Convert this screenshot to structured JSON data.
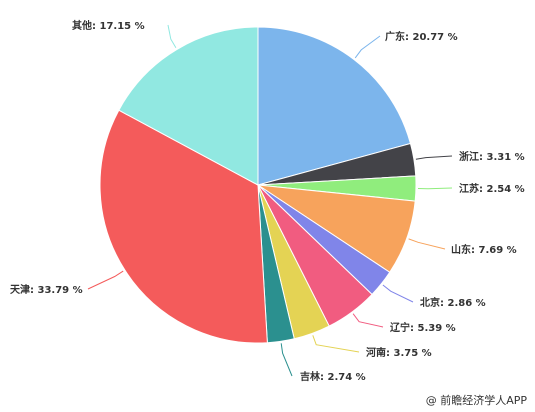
{
  "chart_data": {
    "type": "pie",
    "slices": [
      {
        "label": "广东",
        "value": 20.77,
        "display": "广东: 20.77 %",
        "color": "#7cb5ec"
      },
      {
        "label": "浙江",
        "value": 3.31,
        "display": "浙江: 3.31 %",
        "color": "#434348"
      },
      {
        "label": "江苏",
        "value": 2.54,
        "display": "江苏: 2.54 %",
        "color": "#90ed7d"
      },
      {
        "label": "山东",
        "value": 7.69,
        "display": "山东: 7.69 %",
        "color": "#f7a35c"
      },
      {
        "label": "北京",
        "value": 2.86,
        "display": "北京: 2.86 %",
        "color": "#8085e9"
      },
      {
        "label": "辽宁",
        "value": 5.39,
        "display": "辽宁: 5.39 %",
        "color": "#f15c80"
      },
      {
        "label": "河南",
        "value": 3.75,
        "display": "河南: 3.75 %",
        "color": "#e4d354"
      },
      {
        "label": "吉林",
        "value": 2.74,
        "display": "吉林: 2.74 %",
        "color": "#2b908f"
      },
      {
        "label": "天津",
        "value": 33.79,
        "display": "天津: 33.79 %",
        "color": "#f45b5b"
      },
      {
        "label": "其他",
        "value": 17.15,
        "display": "其他: 17.15 %",
        "color": "#91e8e1"
      }
    ]
  },
  "credit": "@ 前瞻经济学人APP"
}
